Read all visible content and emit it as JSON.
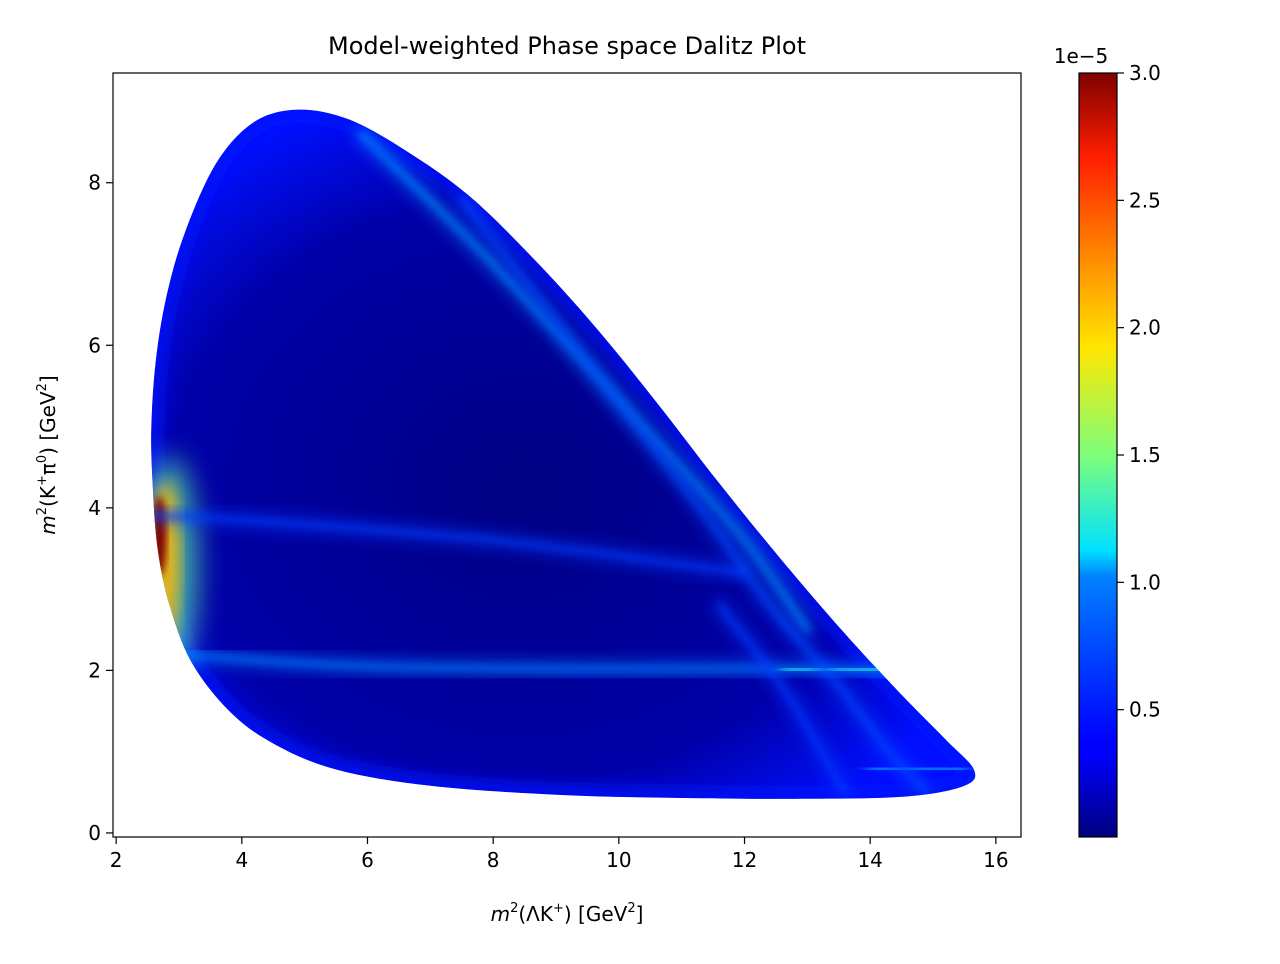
{
  "chart_data": {
    "type": "heatmap",
    "title": "Model-weighted Phase space Dalitz Plot",
    "xlabel": {
      "base": "m",
      "sup": "2",
      "arg": "(ΛK",
      "arg_sup": "+",
      "arg_end": ")",
      "unit": " [GeV",
      "unit_sup": "2",
      "unit_end": "]"
    },
    "ylabel": {
      "base": "m",
      "sup": "2",
      "arg": "(K",
      "arg_sup": "+",
      "arg_mid": "π",
      "arg_sup2": "0",
      "arg_end": ")",
      "unit": " [GeV",
      "unit_sup": "2",
      "unit_end": "]"
    },
    "xlim": [
      1.95,
      16.4
    ],
    "ylim": [
      -0.05,
      9.35
    ],
    "xticks": [
      "2",
      "4",
      "6",
      "8",
      "10",
      "12",
      "14",
      "16"
    ],
    "yticks": [
      "0",
      "2",
      "4",
      "6",
      "8"
    ],
    "colorbar": {
      "colormap": "jet",
      "range": [
        0.0,
        3.0
      ],
      "offset_label": "1e−5",
      "ticks": [
        "0.5",
        "1.0",
        "1.5",
        "2.0",
        "2.5",
        "3.0"
      ]
    },
    "boundary": [
      [
        2.58,
        4.3
      ],
      [
        2.56,
        5.0
      ],
      [
        2.63,
        5.8
      ],
      [
        2.8,
        6.6
      ],
      [
        3.1,
        7.4
      ],
      [
        3.6,
        8.25
      ],
      [
        4.2,
        8.75
      ],
      [
        4.9,
        8.9
      ],
      [
        5.7,
        8.78
      ],
      [
        6.6,
        8.4
      ],
      [
        7.6,
        7.85
      ],
      [
        8.6,
        7.1
      ],
      [
        9.6,
        6.25
      ],
      [
        10.6,
        5.3
      ],
      [
        11.6,
        4.3
      ],
      [
        12.6,
        3.35
      ],
      [
        13.6,
        2.45
      ],
      [
        14.5,
        1.7
      ],
      [
        15.2,
        1.15
      ],
      [
        15.65,
        0.78
      ],
      [
        15.5,
        0.58
      ],
      [
        14.6,
        0.45
      ],
      [
        13.0,
        0.42
      ],
      [
        11.0,
        0.43
      ],
      [
        9.0,
        0.47
      ],
      [
        7.0,
        0.58
      ],
      [
        5.5,
        0.78
      ],
      [
        4.5,
        1.1
      ],
      [
        3.8,
        1.5
      ],
      [
        3.2,
        2.1
      ],
      [
        2.85,
        2.8
      ],
      [
        2.66,
        3.5
      ],
      [
        2.58,
        4.3
      ]
    ],
    "features": [
      {
        "kind": "hotspot",
        "x": 2.72,
        "y": 3.65,
        "value": 3.0
      },
      {
        "kind": "band",
        "path": [
          [
            2.6,
            3.9
          ],
          [
            4.0,
            3.85
          ],
          [
            8.0,
            3.6
          ],
          [
            12.0,
            3.2
          ]
        ],
        "value": 0.55
      },
      {
        "kind": "band",
        "path": [
          [
            2.9,
            2.2
          ],
          [
            6.0,
            2.05
          ],
          [
            10.0,
            2.02
          ],
          [
            13.2,
            2.02
          ],
          [
            15.0,
            1.95
          ]
        ],
        "value": 0.75
      },
      {
        "kind": "band",
        "path": [
          [
            12.6,
            2.02
          ],
          [
            14.7,
            2.0
          ]
        ],
        "value": 1.2
      },
      {
        "kind": "band",
        "path": [
          [
            14.0,
            0.8
          ],
          [
            15.5,
            0.78
          ]
        ],
        "value": 0.95
      },
      {
        "kind": "band",
        "path": [
          [
            5.9,
            8.6
          ],
          [
            8.0,
            7.0
          ],
          [
            10.5,
            4.9
          ],
          [
            12.0,
            3.6
          ],
          [
            13.0,
            2.5
          ]
        ],
        "value": 0.8
      },
      {
        "kind": "band",
        "path": [
          [
            7.5,
            7.8
          ],
          [
            9.5,
            5.8
          ],
          [
            11.3,
            4.0
          ],
          [
            12.4,
            2.8
          ],
          [
            13.4,
            1.9
          ],
          [
            14.3,
            1.0
          ],
          [
            14.9,
            0.5
          ]
        ],
        "value": 0.6
      },
      {
        "kind": "band",
        "path": [
          [
            11.6,
            2.8
          ],
          [
            12.6,
            1.8
          ],
          [
            13.3,
            0.9
          ],
          [
            13.6,
            0.5
          ]
        ],
        "value": 0.55
      }
    ]
  }
}
